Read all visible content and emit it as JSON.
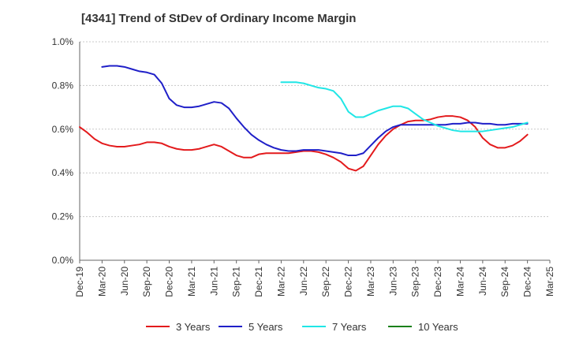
{
  "chart_data": {
    "type": "line",
    "title": "[4341]  Trend of StDev of Ordinary Income Margin",
    "xlabel": "",
    "ylabel": "",
    "ylim": [
      0,
      1.0
    ],
    "yticks": [
      "0.0%",
      "0.2%",
      "0.4%",
      "0.6%",
      "0.8%",
      "1.0%"
    ],
    "ytick_values": [
      0,
      0.2,
      0.4,
      0.6,
      0.8,
      1.0
    ],
    "x_tick_labels": [
      "Dec-19",
      "Mar-20",
      "Jun-20",
      "Sep-20",
      "Dec-20",
      "Mar-21",
      "Jun-21",
      "Sep-21",
      "Dec-21",
      "Mar-22",
      "Jun-22",
      "Sep-22",
      "Dec-22",
      "Mar-23",
      "Jun-23",
      "Sep-23",
      "Dec-23",
      "Mar-24",
      "Jun-24",
      "Sep-24",
      "Dec-24",
      "Mar-25"
    ],
    "grid": "horizontal",
    "legend_position": "bottom",
    "series": [
      {
        "name": "3 Years",
        "color": "#e31a1c",
        "x": [
          "2019-12",
          "2020-01",
          "2020-02",
          "2020-03",
          "2020-04",
          "2020-05",
          "2020-06",
          "2020-07",
          "2020-08",
          "2020-09",
          "2020-10",
          "2020-11",
          "2020-12",
          "2021-01",
          "2021-02",
          "2021-03",
          "2021-04",
          "2021-05",
          "2021-06",
          "2021-07",
          "2021-08",
          "2021-09",
          "2021-10",
          "2021-11",
          "2021-12",
          "2022-01",
          "2022-02",
          "2022-03",
          "2022-04",
          "2022-05",
          "2022-06",
          "2022-07",
          "2022-08",
          "2022-09",
          "2022-10",
          "2022-11",
          "2022-12",
          "2023-01",
          "2023-02",
          "2023-03",
          "2023-04",
          "2023-05",
          "2023-06",
          "2023-07",
          "2023-08",
          "2023-09",
          "2023-10",
          "2023-11",
          "2023-12",
          "2024-01",
          "2024-02",
          "2024-03",
          "2024-04",
          "2024-05",
          "2024-06",
          "2024-07",
          "2024-08",
          "2024-09",
          "2024-10",
          "2024-11",
          "2024-12"
        ],
        "y": [
          0.61,
          0.585,
          0.555,
          0.535,
          0.525,
          0.52,
          0.52,
          0.525,
          0.53,
          0.54,
          0.54,
          0.535,
          0.52,
          0.51,
          0.505,
          0.505,
          0.51,
          0.52,
          0.53,
          0.52,
          0.5,
          0.48,
          0.47,
          0.47,
          0.485,
          0.49,
          0.49,
          0.49,
          0.49,
          0.495,
          0.5,
          0.5,
          0.495,
          0.485,
          0.47,
          0.45,
          0.42,
          0.41,
          0.43,
          0.48,
          0.53,
          0.57,
          0.6,
          0.62,
          0.635,
          0.64,
          0.64,
          0.645,
          0.655,
          0.66,
          0.66,
          0.655,
          0.64,
          0.61,
          0.56,
          0.53,
          0.515,
          0.515,
          0.525,
          0.545,
          0.575
        ]
      },
      {
        "name": "5 Years",
        "color": "#1f1fc8",
        "x": [
          "2020-03",
          "2020-04",
          "2020-05",
          "2020-06",
          "2020-07",
          "2020-08",
          "2020-09",
          "2020-10",
          "2020-11",
          "2020-12",
          "2021-01",
          "2021-02",
          "2021-03",
          "2021-04",
          "2021-05",
          "2021-06",
          "2021-07",
          "2021-08",
          "2021-09",
          "2021-10",
          "2021-11",
          "2021-12",
          "2022-01",
          "2022-02",
          "2022-03",
          "2022-04",
          "2022-05",
          "2022-06",
          "2022-07",
          "2022-08",
          "2022-09",
          "2022-10",
          "2022-11",
          "2022-12",
          "2023-01",
          "2023-02",
          "2023-03",
          "2023-04",
          "2023-05",
          "2023-06",
          "2023-07",
          "2023-08",
          "2023-09",
          "2023-10",
          "2023-11",
          "2023-12",
          "2024-01",
          "2024-02",
          "2024-03",
          "2024-04",
          "2024-05",
          "2024-06",
          "2024-07",
          "2024-08",
          "2024-09",
          "2024-10",
          "2024-11",
          "2024-12"
        ],
        "y": [
          0.885,
          0.89,
          0.89,
          0.885,
          0.875,
          0.865,
          0.86,
          0.85,
          0.81,
          0.74,
          0.71,
          0.7,
          0.7,
          0.705,
          0.715,
          0.725,
          0.72,
          0.695,
          0.65,
          0.61,
          0.575,
          0.55,
          0.53,
          0.515,
          0.505,
          0.5,
          0.5,
          0.505,
          0.505,
          0.505,
          0.5,
          0.495,
          0.49,
          0.48,
          0.48,
          0.49,
          0.525,
          0.56,
          0.59,
          0.61,
          0.62,
          0.62,
          0.62,
          0.62,
          0.62,
          0.62,
          0.62,
          0.625,
          0.625,
          0.63,
          0.63,
          0.625,
          0.625,
          0.62,
          0.62,
          0.625,
          0.625,
          0.625
        ]
      },
      {
        "name": "7 Years",
        "color": "#20e6e6",
        "x": [
          "2022-03",
          "2022-04",
          "2022-05",
          "2022-06",
          "2022-07",
          "2022-08",
          "2022-09",
          "2022-10",
          "2022-11",
          "2022-12",
          "2023-01",
          "2023-02",
          "2023-03",
          "2023-04",
          "2023-05",
          "2023-06",
          "2023-07",
          "2023-08",
          "2023-09",
          "2023-10",
          "2023-11",
          "2023-12",
          "2024-01",
          "2024-02",
          "2024-03",
          "2024-04",
          "2024-05",
          "2024-06",
          "2024-07",
          "2024-08",
          "2024-09",
          "2024-10",
          "2024-11",
          "2024-12"
        ],
        "y": [
          0.815,
          0.815,
          0.815,
          0.81,
          0.8,
          0.79,
          0.785,
          0.775,
          0.74,
          0.68,
          0.655,
          0.655,
          0.67,
          0.685,
          0.695,
          0.705,
          0.705,
          0.695,
          0.67,
          0.645,
          0.63,
          0.615,
          0.605,
          0.595,
          0.59,
          0.59,
          0.59,
          0.59,
          0.595,
          0.6,
          0.605,
          0.61,
          0.62,
          0.63
        ]
      },
      {
        "name": "10 Years",
        "color": "#1a801a",
        "x": [],
        "y": []
      }
    ]
  }
}
